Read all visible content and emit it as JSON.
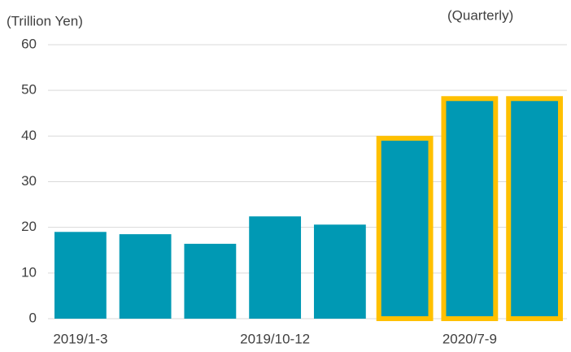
{
  "chart_data": {
    "type": "bar",
    "y_label": "(Trillion Yen)",
    "subtitle": "(Quarterly)",
    "categories": [
      "2019/1-3",
      null,
      null,
      "2019/10-12",
      null,
      null,
      "2020/7-9",
      null
    ],
    "values": [
      19.0,
      18.5,
      16.4,
      22.4,
      20.6,
      39.5,
      48.2,
      48.2
    ],
    "color": "#0099b4",
    "highlight": [
      false,
      false,
      false,
      false,
      false,
      true,
      true,
      true
    ],
    "highlight_color": "#ffc000",
    "ylim": [
      0,
      60
    ],
    "yticks": [
      0,
      10,
      20,
      30,
      40,
      50,
      60
    ],
    "grid": true
  }
}
